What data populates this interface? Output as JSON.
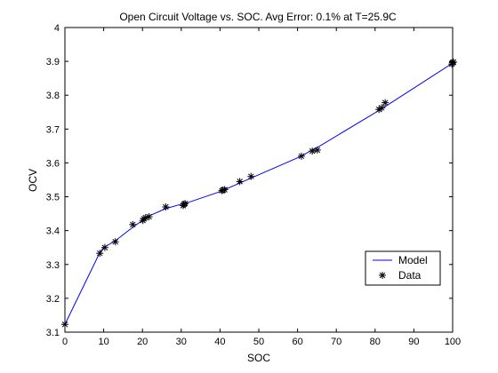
{
  "chart_data": {
    "type": "line",
    "title": "Open Circuit Voltage vs. SOC. Avg Error: 0.1% at T=25.9C",
    "xlabel": "SOC",
    "ylabel": "OCV",
    "xlim": [
      0,
      100
    ],
    "ylim": [
      3.1,
      4.0
    ],
    "x_ticks": [
      0,
      10,
      20,
      30,
      40,
      50,
      60,
      70,
      80,
      90,
      100
    ],
    "x_tick_labels": [
      "0",
      "10",
      "20",
      "30",
      "40",
      "50",
      "60",
      "70",
      "80",
      "90",
      "100"
    ],
    "y_ticks": [
      3.1,
      3.2,
      3.3,
      3.4,
      3.5,
      3.6,
      3.7,
      3.8,
      3.9,
      4.0
    ],
    "y_tick_labels": [
      "3.1",
      "3.2",
      "3.3",
      "3.4",
      "3.5",
      "3.6",
      "3.7",
      "3.8",
      "3.9",
      "4"
    ],
    "grid": false,
    "legend_position": "bottom-right",
    "series": [
      {
        "name": "Model",
        "style": "line",
        "color": "#0000ff",
        "x": [
          0,
          9,
          10,
          13,
          17.5,
          20,
          22,
          26,
          30,
          31,
          40.5,
          41,
          45,
          48,
          61,
          64,
          65,
          81,
          82,
          100
        ],
        "y": [
          3.123,
          3.335,
          3.35,
          3.37,
          3.41,
          3.43,
          3.445,
          3.465,
          3.478,
          3.48,
          3.517,
          3.52,
          3.54,
          3.555,
          3.62,
          3.64,
          3.645,
          3.755,
          3.762,
          3.895
        ]
      },
      {
        "name": "Data",
        "style": "marker",
        "marker": "*",
        "color": "#000000",
        "x": [
          0,
          9,
          10.3,
          13,
          17.5,
          20.1,
          20.4,
          20.8,
          21.7,
          26,
          30.5,
          30.7,
          31,
          40.5,
          40.8,
          41.2,
          45.1,
          48,
          61,
          63.8,
          65.1,
          81,
          81.7,
          82.6,
          99.8,
          100,
          100.2
        ],
        "y": [
          3.123,
          3.333,
          3.35,
          3.367,
          3.418,
          3.43,
          3.435,
          3.438,
          3.441,
          3.47,
          3.474,
          3.478,
          3.48,
          3.518,
          3.52,
          3.521,
          3.545,
          3.56,
          3.62,
          3.635,
          3.638,
          3.758,
          3.763,
          3.778,
          3.892,
          3.896,
          3.898
        ]
      }
    ]
  }
}
